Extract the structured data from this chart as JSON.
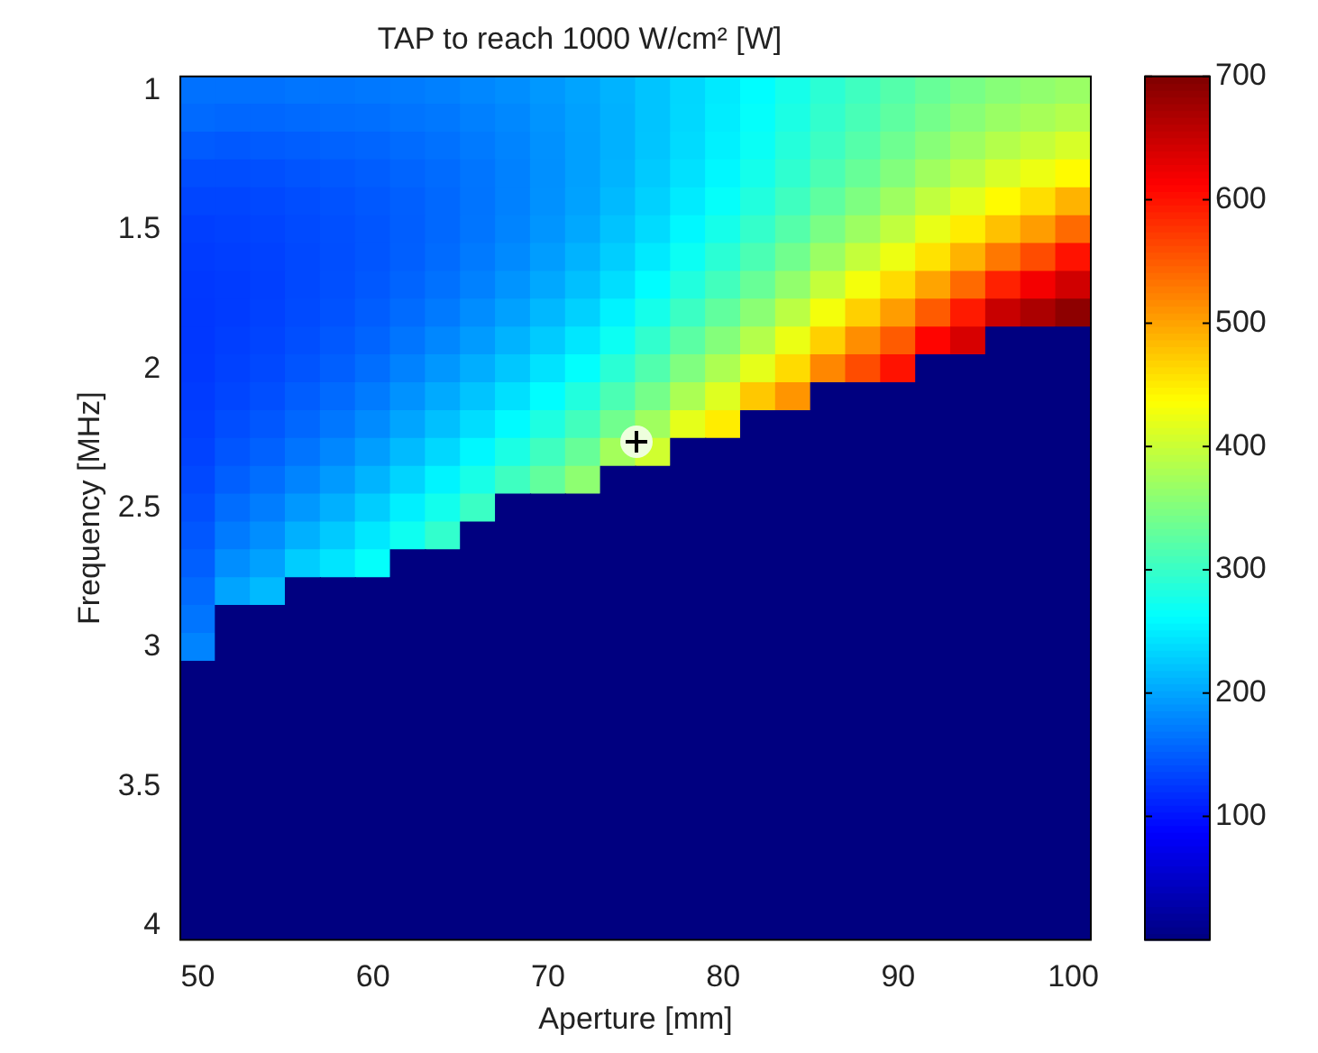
{
  "chart_data": {
    "type": "heatmap",
    "title": "TAP to reach 1000 W/cm² [W]",
    "xlabel": "Aperture [mm]",
    "ylabel": "Frequency [MHz]",
    "categories": [
      "50",
      null,
      null,
      null,
      null,
      "60",
      null,
      null,
      null,
      null,
      "70",
      null,
      null,
      null,
      null,
      "80",
      null,
      null,
      null,
      null,
      "90",
      null,
      null,
      null,
      null,
      "100"
    ],
    "y_categories": [
      "1",
      null,
      null,
      null,
      null,
      "1.5",
      null,
      null,
      null,
      null,
      "2",
      null,
      null,
      null,
      null,
      "2.5",
      null,
      null,
      null,
      null,
      "3",
      null,
      null,
      null,
      null,
      "3.5",
      null,
      null,
      null,
      null,
      "4"
    ],
    "clim": [
      0,
      700
    ],
    "cticks": [
      100,
      200,
      300,
      400,
      500,
      600,
      700
    ],
    "cells": [
      [
        165,
        165,
        165,
        168,
        168,
        170,
        172,
        175,
        180,
        185,
        192,
        200,
        210,
        222,
        235,
        248,
        262,
        277,
        292,
        306,
        320,
        333,
        345,
        355,
        362,
        368
      ],
      [
        160,
        158,
        158,
        160,
        162,
        164,
        167,
        170,
        175,
        181,
        189,
        198,
        209,
        222,
        236,
        250,
        265,
        281,
        297,
        312,
        327,
        342,
        356,
        368,
        377,
        385
      ],
      [
        150,
        148,
        150,
        152,
        155,
        157,
        161,
        165,
        171,
        178,
        187,
        197,
        209,
        223,
        238,
        253,
        269,
        287,
        304,
        321,
        338,
        355,
        371,
        386,
        398,
        410
      ],
      [
        140,
        140,
        142,
        145,
        148,
        151,
        156,
        161,
        168,
        176,
        186,
        197,
        211,
        226,
        242,
        258,
        276,
        295,
        314,
        333,
        352,
        372,
        391,
        410,
        425,
        440
      ],
      [
        135,
        135,
        137,
        140,
        144,
        148,
        153,
        159,
        167,
        176,
        187,
        199,
        215,
        231,
        249,
        266,
        285,
        306,
        328,
        349,
        371,
        394,
        417,
        440,
        460,
        490
      ],
      [
        130,
        132,
        134,
        138,
        142,
        146,
        152,
        159,
        168,
        178,
        190,
        203,
        221,
        238,
        258,
        277,
        298,
        321,
        346,
        370,
        395,
        422,
        450,
        480,
        505,
        540
      ],
      [
        128,
        130,
        132,
        137,
        141,
        146,
        153,
        161,
        171,
        182,
        195,
        210,
        229,
        248,
        270,
        291,
        314,
        340,
        369,
        397,
        425,
        457,
        490,
        530,
        560,
        600
      ],
      [
        126,
        128,
        131,
        137,
        142,
        148,
        156,
        165,
        176,
        189,
        203,
        219,
        240,
        261,
        285,
        308,
        334,
        363,
        397,
        430,
        462,
        500,
        540,
        590,
        620,
        645
      ],
      [
        125,
        128,
        132,
        138,
        144,
        151,
        161,
        171,
        184,
        198,
        214,
        231,
        254,
        277,
        303,
        329,
        358,
        391,
        430,
        470,
        505,
        550,
        595,
        650,
        670,
        690
      ],
      [
        125,
        130,
        134,
        141,
        148,
        156,
        168,
        180,
        194,
        210,
        227,
        246,
        271,
        296,
        325,
        353,
        386,
        424,
        470,
        515,
        550,
        610,
        640,
        0,
        0,
        0
      ],
      [
        126,
        132,
        137,
        145,
        153,
        163,
        177,
        191,
        207,
        224,
        243,
        264,
        291,
        318,
        350,
        381,
        420,
        462,
        520,
        560,
        600,
        0,
        0,
        0,
        0,
        0
      ],
      [
        128,
        135,
        141,
        151,
        160,
        172,
        188,
        204,
        222,
        241,
        262,
        285,
        314,
        343,
        380,
        415,
        475,
        510,
        0,
        0,
        0,
        0,
        0,
        0,
        0,
        0
      ],
      [
        130,
        140,
        147,
        158,
        169,
        183,
        201,
        219,
        239,
        260,
        283,
        308,
        340,
        372,
        420,
        450,
        0,
        0,
        0,
        0,
        0,
        0,
        0,
        0,
        0,
        0
      ],
      [
        133,
        146,
        154,
        167,
        180,
        196,
        216,
        236,
        258,
        281,
        306,
        333,
        375,
        405,
        0,
        0,
        0,
        0,
        0,
        0,
        0,
        0,
        0,
        0,
        0,
        0
      ],
      [
        137,
        153,
        163,
        178,
        193,
        211,
        233,
        255,
        279,
        305,
        330,
        360,
        0,
        0,
        0,
        0,
        0,
        0,
        0,
        0,
        0,
        0,
        0,
        0,
        0,
        0
      ],
      [
        142,
        162,
        173,
        192,
        208,
        228,
        252,
        275,
        302,
        0,
        0,
        0,
        0,
        0,
        0,
        0,
        0,
        0,
        0,
        0,
        0,
        0,
        0,
        0,
        0,
        0
      ],
      [
        147,
        172,
        185,
        208,
        226,
        247,
        272,
        297,
        0,
        0,
        0,
        0,
        0,
        0,
        0,
        0,
        0,
        0,
        0,
        0,
        0,
        0,
        0,
        0,
        0,
        0
      ],
      [
        153,
        185,
        198,
        228,
        245,
        265,
        0,
        0,
        0,
        0,
        0,
        0,
        0,
        0,
        0,
        0,
        0,
        0,
        0,
        0,
        0,
        0,
        0,
        0,
        0,
        0
      ],
      [
        160,
        200,
        215,
        0,
        0,
        0,
        0,
        0,
        0,
        0,
        0,
        0,
        0,
        0,
        0,
        0,
        0,
        0,
        0,
        0,
        0,
        0,
        0,
        0,
        0,
        0
      ],
      [
        168,
        0,
        0,
        0,
        0,
        0,
        0,
        0,
        0,
        0,
        0,
        0,
        0,
        0,
        0,
        0,
        0,
        0,
        0,
        0,
        0,
        0,
        0,
        0,
        0,
        0
      ],
      [
        178,
        0,
        0,
        0,
        0,
        0,
        0,
        0,
        0,
        0,
        0,
        0,
        0,
        0,
        0,
        0,
        0,
        0,
        0,
        0,
        0,
        0,
        0,
        0,
        0,
        0
      ],
      [
        0,
        0,
        0,
        0,
        0,
        0,
        0,
        0,
        0,
        0,
        0,
        0,
        0,
        0,
        0,
        0,
        0,
        0,
        0,
        0,
        0,
        0,
        0,
        0,
        0,
        0
      ],
      [
        0,
        0,
        0,
        0,
        0,
        0,
        0,
        0,
        0,
        0,
        0,
        0,
        0,
        0,
        0,
        0,
        0,
        0,
        0,
        0,
        0,
        0,
        0,
        0,
        0,
        0
      ],
      [
        0,
        0,
        0,
        0,
        0,
        0,
        0,
        0,
        0,
        0,
        0,
        0,
        0,
        0,
        0,
        0,
        0,
        0,
        0,
        0,
        0,
        0,
        0,
        0,
        0,
        0
      ],
      [
        0,
        0,
        0,
        0,
        0,
        0,
        0,
        0,
        0,
        0,
        0,
        0,
        0,
        0,
        0,
        0,
        0,
        0,
        0,
        0,
        0,
        0,
        0,
        0,
        0,
        0
      ],
      [
        0,
        0,
        0,
        0,
        0,
        0,
        0,
        0,
        0,
        0,
        0,
        0,
        0,
        0,
        0,
        0,
        0,
        0,
        0,
        0,
        0,
        0,
        0,
        0,
        0,
        0
      ],
      [
        0,
        0,
        0,
        0,
        0,
        0,
        0,
        0,
        0,
        0,
        0,
        0,
        0,
        0,
        0,
        0,
        0,
        0,
        0,
        0,
        0,
        0,
        0,
        0,
        0,
        0
      ],
      [
        0,
        0,
        0,
        0,
        0,
        0,
        0,
        0,
        0,
        0,
        0,
        0,
        0,
        0,
        0,
        0,
        0,
        0,
        0,
        0,
        0,
        0,
        0,
        0,
        0,
        0
      ],
      [
        0,
        0,
        0,
        0,
        0,
        0,
        0,
        0,
        0,
        0,
        0,
        0,
        0,
        0,
        0,
        0,
        0,
        0,
        0,
        0,
        0,
        0,
        0,
        0,
        0,
        0
      ],
      [
        0,
        0,
        0,
        0,
        0,
        0,
        0,
        0,
        0,
        0,
        0,
        0,
        0,
        0,
        0,
        0,
        0,
        0,
        0,
        0,
        0,
        0,
        0,
        0,
        0,
        0
      ],
      [
        0,
        0,
        0,
        0,
        0,
        0,
        0,
        0,
        0,
        0,
        0,
        0,
        0,
        0,
        0,
        0,
        0,
        0,
        0,
        0,
        0,
        0,
        0,
        0,
        0,
        0
      ]
    ]
  }
}
